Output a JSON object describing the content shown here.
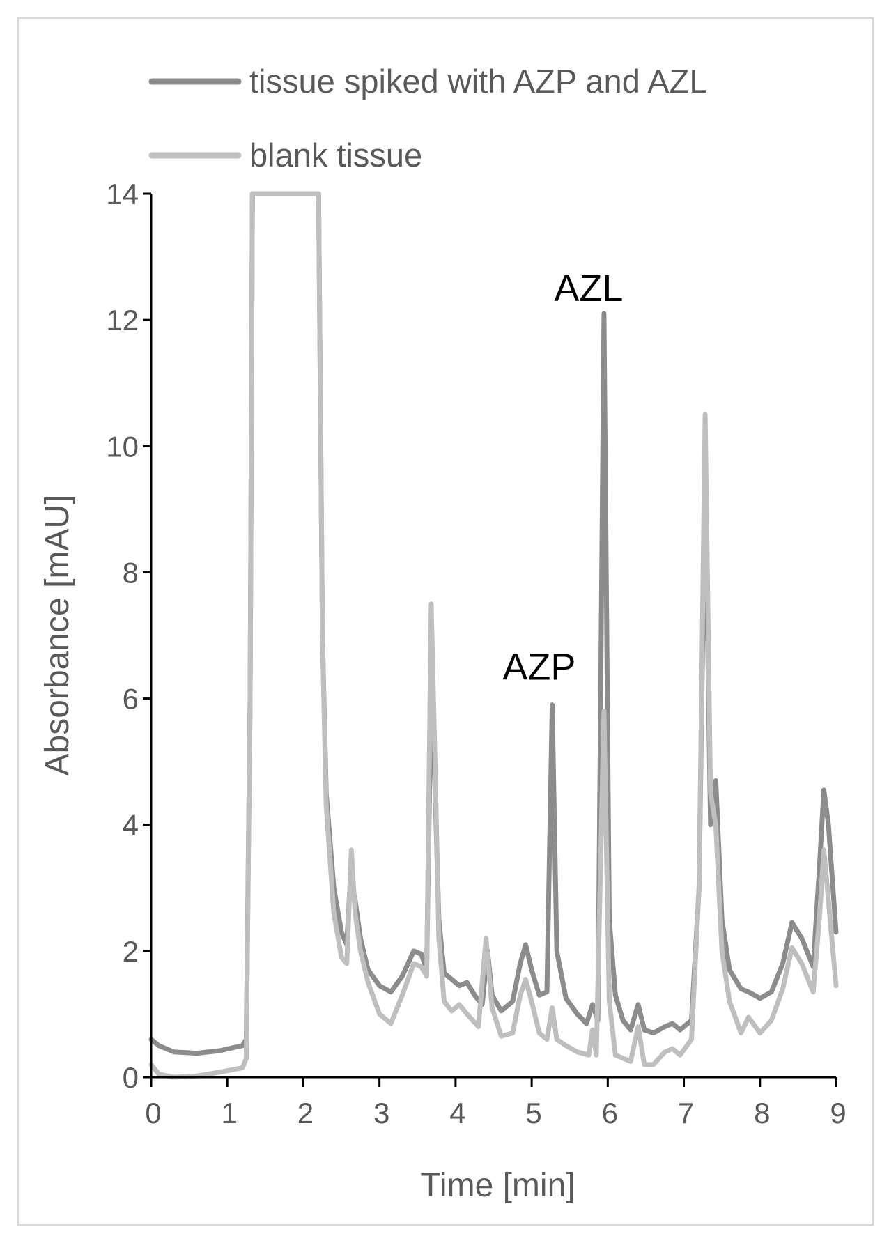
{
  "chart_data": {
    "type": "line",
    "xlabel": "Time [min]",
    "ylabel": "Absorbance [mAU]",
    "xlim": [
      0,
      9
    ],
    "ylim": [
      0,
      14
    ],
    "xticks": [
      "0",
      "1",
      "2",
      "3",
      "4",
      "5",
      "6",
      "7",
      "8",
      "9"
    ],
    "yticks": [
      "0",
      "2",
      "4",
      "6",
      "8",
      "10",
      "12",
      "14"
    ],
    "legend_position": "top-left",
    "grid": false,
    "annotations": [
      {
        "text": "AZP",
        "x": 5.3,
        "y": 6.3
      },
      {
        "text": "AZL",
        "x": 5.95,
        "y": 12.3
      }
    ],
    "series": [
      {
        "name": "tissue spiked with AZP and AZL",
        "color": "#8c8c8c",
        "points": [
          [
            0,
            0.6
          ],
          [
            0.1,
            0.5
          ],
          [
            0.3,
            0.4
          ],
          [
            0.6,
            0.38
          ],
          [
            0.9,
            0.42
          ],
          [
            1.2,
            0.5
          ],
          [
            1.25,
            0.6
          ],
          [
            1.3,
            6
          ],
          [
            1.33,
            14
          ],
          [
            2.2,
            14
          ],
          [
            2.25,
            7
          ],
          [
            2.3,
            4.5
          ],
          [
            2.4,
            3
          ],
          [
            2.5,
            2.3
          ],
          [
            2.57,
            2.1
          ],
          [
            2.62,
            3.2
          ],
          [
            2.68,
            2.8
          ],
          [
            2.75,
            2.2
          ],
          [
            2.85,
            1.7
          ],
          [
            3.0,
            1.45
          ],
          [
            3.15,
            1.35
          ],
          [
            3.3,
            1.6
          ],
          [
            3.45,
            2.0
          ],
          [
            3.55,
            1.95
          ],
          [
            3.62,
            1.7
          ],
          [
            3.68,
            6.2
          ],
          [
            3.72,
            5.0
          ],
          [
            3.78,
            2.5
          ],
          [
            3.85,
            1.65
          ],
          [
            3.95,
            1.55
          ],
          [
            4.05,
            1.45
          ],
          [
            4.15,
            1.5
          ],
          [
            4.25,
            1.3
          ],
          [
            4.35,
            1.15
          ],
          [
            4.42,
            2.0
          ],
          [
            4.48,
            1.3
          ],
          [
            4.6,
            1.05
          ],
          [
            4.75,
            1.2
          ],
          [
            4.85,
            1.8
          ],
          [
            4.92,
            2.1
          ],
          [
            5.0,
            1.7
          ],
          [
            5.1,
            1.3
          ],
          [
            5.2,
            1.35
          ],
          [
            5.27,
            5.9
          ],
          [
            5.33,
            2.0
          ],
          [
            5.45,
            1.25
          ],
          [
            5.6,
            1.0
          ],
          [
            5.72,
            0.85
          ],
          [
            5.8,
            1.15
          ],
          [
            5.87,
            0.9
          ],
          [
            5.95,
            12.1
          ],
          [
            6.02,
            2.5
          ],
          [
            6.1,
            1.3
          ],
          [
            6.2,
            0.9
          ],
          [
            6.3,
            0.75
          ],
          [
            6.4,
            1.15
          ],
          [
            6.48,
            0.75
          ],
          [
            6.6,
            0.7
          ],
          [
            6.75,
            0.8
          ],
          [
            6.85,
            0.85
          ],
          [
            6.95,
            0.75
          ],
          [
            7.1,
            0.9
          ],
          [
            7.2,
            3.0
          ],
          [
            7.28,
            9.6
          ],
          [
            7.35,
            4.0
          ],
          [
            7.42,
            4.7
          ],
          [
            7.5,
            2.5
          ],
          [
            7.6,
            1.7
          ],
          [
            7.75,
            1.4
          ],
          [
            7.85,
            1.35
          ],
          [
            8.0,
            1.25
          ],
          [
            8.15,
            1.35
          ],
          [
            8.3,
            1.8
          ],
          [
            8.42,
            2.45
          ],
          [
            8.55,
            2.2
          ],
          [
            8.7,
            1.75
          ],
          [
            8.78,
            3.3
          ],
          [
            8.84,
            4.55
          ],
          [
            8.9,
            4.0
          ],
          [
            9.0,
            2.3
          ]
        ]
      },
      {
        "name": "blank tissue",
        "color": "#bfbfbf",
        "points": [
          [
            0,
            0.2
          ],
          [
            0.1,
            0.05
          ],
          [
            0.3,
            0.0
          ],
          [
            0.6,
            0.02
          ],
          [
            0.9,
            0.08
          ],
          [
            1.2,
            0.15
          ],
          [
            1.25,
            0.3
          ],
          [
            1.3,
            6
          ],
          [
            1.33,
            14
          ],
          [
            2.2,
            14
          ],
          [
            2.25,
            7
          ],
          [
            2.3,
            4.3
          ],
          [
            2.4,
            2.6
          ],
          [
            2.5,
            1.9
          ],
          [
            2.57,
            1.8
          ],
          [
            2.63,
            3.6
          ],
          [
            2.68,
            2.6
          ],
          [
            2.75,
            2.0
          ],
          [
            2.85,
            1.5
          ],
          [
            3.0,
            1.0
          ],
          [
            3.15,
            0.85
          ],
          [
            3.3,
            1.3
          ],
          [
            3.45,
            1.8
          ],
          [
            3.55,
            1.75
          ],
          [
            3.62,
            1.6
          ],
          [
            3.68,
            7.5
          ],
          [
            3.73,
            5.0
          ],
          [
            3.78,
            2.2
          ],
          [
            3.85,
            1.2
          ],
          [
            3.95,
            1.05
          ],
          [
            4.05,
            1.15
          ],
          [
            4.15,
            1.0
          ],
          [
            4.3,
            0.8
          ],
          [
            4.4,
            2.2
          ],
          [
            4.48,
            1.1
          ],
          [
            4.6,
            0.65
          ],
          [
            4.75,
            0.7
          ],
          [
            4.85,
            1.3
          ],
          [
            4.92,
            1.55
          ],
          [
            5.0,
            1.2
          ],
          [
            5.1,
            0.7
          ],
          [
            5.2,
            0.6
          ],
          [
            5.27,
            1.1
          ],
          [
            5.33,
            0.6
          ],
          [
            5.45,
            0.5
          ],
          [
            5.6,
            0.4
          ],
          [
            5.75,
            0.35
          ],
          [
            5.8,
            0.75
          ],
          [
            5.85,
            0.35
          ],
          [
            5.95,
            5.8
          ],
          [
            6.02,
            1.2
          ],
          [
            6.1,
            0.35
          ],
          [
            6.2,
            0.3
          ],
          [
            6.3,
            0.25
          ],
          [
            6.4,
            0.8
          ],
          [
            6.48,
            0.2
          ],
          [
            6.6,
            0.2
          ],
          [
            6.75,
            0.4
          ],
          [
            6.85,
            0.45
          ],
          [
            6.95,
            0.35
          ],
          [
            7.1,
            0.6
          ],
          [
            7.2,
            3.0
          ],
          [
            7.28,
            10.5
          ],
          [
            7.35,
            4.5
          ],
          [
            7.42,
            4.0
          ],
          [
            7.5,
            2.0
          ],
          [
            7.6,
            1.2
          ],
          [
            7.75,
            0.7
          ],
          [
            7.85,
            0.95
          ],
          [
            8.0,
            0.7
          ],
          [
            8.15,
            0.9
          ],
          [
            8.3,
            1.4
          ],
          [
            8.42,
            2.05
          ],
          [
            8.55,
            1.8
          ],
          [
            8.7,
            1.35
          ],
          [
            8.78,
            2.5
          ],
          [
            8.84,
            3.6
          ],
          [
            8.9,
            2.8
          ],
          [
            9.0,
            1.45
          ]
        ]
      }
    ]
  }
}
